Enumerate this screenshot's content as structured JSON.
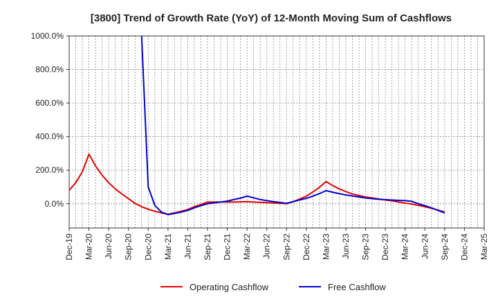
{
  "chart_data": {
    "type": "line",
    "title": "[3800]  Trend of Growth Rate (YoY) of 12-Month Moving Sum of Cashflows",
    "xlabel": "",
    "ylabel": "",
    "x_ticks": [
      "Dec-19",
      "Mar-20",
      "Jun-20",
      "Sep-20",
      "Dec-20",
      "Mar-21",
      "Jun-21",
      "Sep-21",
      "Dec-21",
      "Mar-22",
      "Jun-22",
      "Sep-22",
      "Dec-22",
      "Mar-23",
      "Jun-23",
      "Sep-23",
      "Dec-23",
      "Mar-24",
      "Jun-24",
      "Sep-24",
      "Dec-24",
      "Mar-25"
    ],
    "y_ticks": [
      "0.0%",
      "200.0%",
      "400.0%",
      "600.0%",
      "800.0%",
      "1000.0%"
    ],
    "ylim": [
      -145,
      1000
    ],
    "grid": true,
    "legend_position": "bottom",
    "series": [
      {
        "name": "Operating Cashflow",
        "color": "#e00000",
        "points": [
          [
            "2019-12",
            80
          ],
          [
            "2020-01",
            125
          ],
          [
            "2020-02",
            190
          ],
          [
            "2020-03",
            295
          ],
          [
            "2020-04",
            225
          ],
          [
            "2020-05",
            170
          ],
          [
            "2020-06",
            125
          ],
          [
            "2020-07",
            88
          ],
          [
            "2020-08",
            58
          ],
          [
            "2020-09",
            30
          ],
          [
            "2020-10",
            2
          ],
          [
            "2020-11",
            -18
          ],
          [
            "2020-12",
            -33
          ],
          [
            "2021-01",
            -45
          ],
          [
            "2021-02",
            -55
          ],
          [
            "2021-03",
            -63
          ],
          [
            "2021-04",
            -55
          ],
          [
            "2021-05",
            -45
          ],
          [
            "2021-06",
            -35
          ],
          [
            "2021-07",
            -18
          ],
          [
            "2021-08",
            -5
          ],
          [
            "2021-09",
            10
          ],
          [
            "2021-10",
            10
          ],
          [
            "2021-11",
            10
          ],
          [
            "2021-12",
            10
          ],
          [
            "2022-01",
            10
          ],
          [
            "2022-02",
            11
          ],
          [
            "2022-03",
            12
          ],
          [
            "2022-04",
            10
          ],
          [
            "2022-05",
            8
          ],
          [
            "2022-06",
            6
          ],
          [
            "2022-07",
            4
          ],
          [
            "2022-08",
            2
          ],
          [
            "2022-09",
            0
          ],
          [
            "2022-10",
            12
          ],
          [
            "2022-11",
            28
          ],
          [
            "2022-12",
            45
          ],
          [
            "2023-01",
            70
          ],
          [
            "2023-02",
            98
          ],
          [
            "2023-03",
            132
          ],
          [
            "2023-04",
            108
          ],
          [
            "2023-05",
            88
          ],
          [
            "2023-06",
            72
          ],
          [
            "2023-07",
            58
          ],
          [
            "2023-08",
            48
          ],
          [
            "2023-09",
            40
          ],
          [
            "2023-10",
            34
          ],
          [
            "2023-11",
            28
          ],
          [
            "2023-12",
            22
          ],
          [
            "2024-01",
            17
          ],
          [
            "2024-02",
            10
          ],
          [
            "2024-03",
            3
          ],
          [
            "2024-04",
            -2
          ],
          [
            "2024-05",
            -10
          ],
          [
            "2024-06",
            -18
          ],
          [
            "2024-07",
            -28
          ],
          [
            "2024-08",
            -38
          ],
          [
            "2024-09",
            -50
          ]
        ]
      },
      {
        "name": "Free Cashflow",
        "color": "#0000cc",
        "points": [
          [
            "2020-11",
            1000
          ],
          [
            "2020-12",
            100
          ],
          [
            "2021-01",
            -10
          ],
          [
            "2021-02",
            -50
          ],
          [
            "2021-03",
            -65
          ],
          [
            "2021-04",
            -58
          ],
          [
            "2021-05",
            -50
          ],
          [
            "2021-06",
            -40
          ],
          [
            "2021-07",
            -25
          ],
          [
            "2021-08",
            -12
          ],
          [
            "2021-09",
            0
          ],
          [
            "2021-10",
            5
          ],
          [
            "2021-11",
            10
          ],
          [
            "2021-12",
            15
          ],
          [
            "2022-01",
            25
          ],
          [
            "2022-02",
            33
          ],
          [
            "2022-03",
            45
          ],
          [
            "2022-04",
            35
          ],
          [
            "2022-05",
            25
          ],
          [
            "2022-06",
            18
          ],
          [
            "2022-07",
            12
          ],
          [
            "2022-08",
            8
          ],
          [
            "2022-09",
            2
          ],
          [
            "2022-10",
            12
          ],
          [
            "2022-11",
            22
          ],
          [
            "2022-12",
            32
          ],
          [
            "2023-01",
            45
          ],
          [
            "2023-02",
            60
          ],
          [
            "2023-03",
            78
          ],
          [
            "2023-04",
            68
          ],
          [
            "2023-05",
            60
          ],
          [
            "2023-06",
            52
          ],
          [
            "2023-07",
            46
          ],
          [
            "2023-08",
            40
          ],
          [
            "2023-09",
            34
          ],
          [
            "2023-10",
            30
          ],
          [
            "2023-11",
            26
          ],
          [
            "2023-12",
            24
          ],
          [
            "2024-01",
            22
          ],
          [
            "2024-02",
            20
          ],
          [
            "2024-03",
            18
          ],
          [
            "2024-04",
            14
          ],
          [
            "2024-05",
            0
          ],
          [
            "2024-06",
            -12
          ],
          [
            "2024-07",
            -25
          ],
          [
            "2024-08",
            -40
          ],
          [
            "2024-09",
            -55
          ]
        ]
      }
    ]
  }
}
